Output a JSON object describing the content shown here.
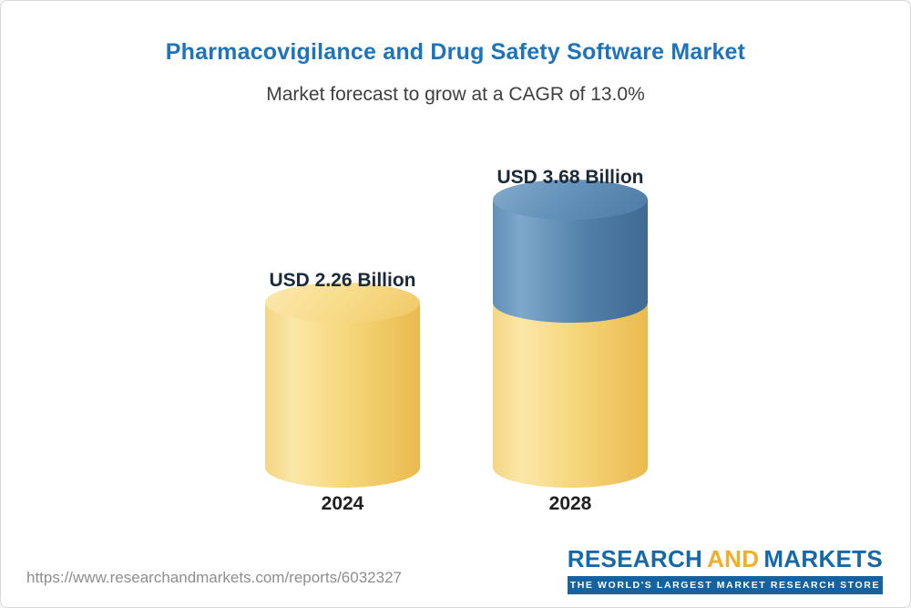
{
  "header": {
    "title": "Pharmacovigilance and Drug Safety Software Market",
    "subtitle": "Market forecast to grow at a CAGR of 13.0%"
  },
  "chart_data": {
    "type": "bar",
    "subtype": "3d-cylinder-stacked",
    "categories": [
      "2024",
      "2028"
    ],
    "values": [
      2.26,
      3.68
    ],
    "value_labels": [
      "USD 2.26 Billion",
      "USD 3.68 Billion"
    ],
    "unit": "USD Billion",
    "ylim": [
      0,
      4
    ],
    "legend_position": "none",
    "grid": false,
    "series": [
      {
        "name": "2024 base",
        "values": [
          2.26,
          2.26
        ],
        "color": "#F2CB63"
      },
      {
        "name": "Growth to 2028",
        "values": [
          0,
          1.42
        ],
        "color": "#4E81AC"
      }
    ],
    "annotation": "2028 bar shows the 2024 base in gold with incremental growth segment in blue"
  },
  "footer": {
    "url": "https://www.researchandmarkets.com/reports/6032327",
    "logo": {
      "research": "RESEARCH",
      "and": "AND",
      "markets": "MARKETS",
      "tagline": "THE WORLD'S LARGEST MARKET RESEARCH STORE"
    }
  },
  "colors": {
    "title_blue": "#1e74ba",
    "gold_segment": "#F2CB63",
    "blue_segment": "#4E81AC",
    "logo_blue": "#1669a9",
    "logo_gold": "#f0af2a"
  }
}
